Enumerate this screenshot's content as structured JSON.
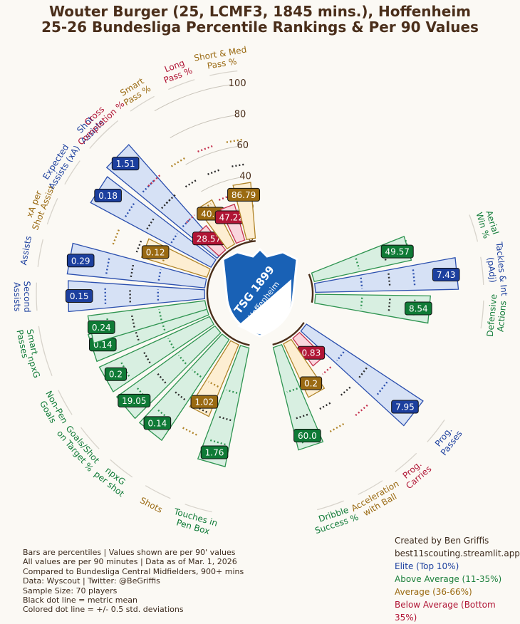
{
  "title_line1": "Wouter Burger (25, LCMF3, 1845 mins.), Hoffenheim",
  "title_line2": "25-26 Bundesliga Percentile Rankings & Per 90 Values",
  "logo": {
    "line1": "TSG 1899",
    "line2": "Hoffenheim",
    "primary": "#1961b5",
    "secondary": "#ffffff"
  },
  "colors": {
    "elite": {
      "fill": "#d6e1f5",
      "stroke": "#2b4fae",
      "label_bg": "#1c3f9e"
    },
    "above": {
      "fill": "#d8efe1",
      "stroke": "#2e9450",
      "label_bg": "#0f7a36"
    },
    "avg": {
      "fill": "#fdeed2",
      "stroke": "#b08428",
      "label_bg": "#9a6a12"
    },
    "below": {
      "fill": "#f9d6dd",
      "stroke": "#c4324e",
      "label_bg": "#b01535"
    }
  },
  "chart_data": {
    "type": "radial-bar",
    "radial_ticks": [
      0,
      20,
      40,
      60,
      80,
      100
    ],
    "rlim": [
      0,
      100
    ],
    "metrics": [
      {
        "label": "Aerial\nWin %",
        "value": "49.57",
        "percentile": 64,
        "tier": "above"
      },
      {
        "label": "Tackles & Int\n(pAdj)",
        "value": "7.43",
        "percentile": 92,
        "tier": "elite"
      },
      {
        "label": "Defensive\nActions",
        "value": "8.54",
        "percentile": 74,
        "tier": "above"
      },
      {
        "label": "Prog.\nPasses",
        "value": "7.95",
        "percentile": 90,
        "tier": "elite"
      },
      {
        "label": "Prog.\nCarries",
        "value": "0.83",
        "percentile": 22,
        "tier": "below"
      },
      {
        "label": "Acceleration\nwith Ball",
        "value": "0.2",
        "percentile": 38,
        "tier": "avg"
      },
      {
        "label": "Dribble\nSuccess %",
        "value": "60.0",
        "percentile": 68,
        "tier": "above"
      },
      {
        "label": "Touches in\nPen Box",
        "value": "1.76",
        "percentile": 78,
        "tier": "above"
      },
      {
        "label": "Shots",
        "value": "1.02",
        "percentile": 50,
        "tier": "avg"
      },
      {
        "label": "npxG\nper shot",
        "value": "0.14",
        "percentile": 78,
        "tier": "above"
      },
      {
        "label": "Goals/Shot\non Target %",
        "value": "19.05",
        "percentile": 78,
        "tier": "above"
      },
      {
        "label": "Non-Pen\nGoals",
        "value": "0.2",
        "percentile": 78,
        "tier": "above"
      },
      {
        "label": "npxG",
        "value": "0.14",
        "percentile": 78,
        "tier": "above"
      },
      {
        "label": "Smart\nPasses",
        "value": "0.24",
        "percentile": 76,
        "tier": "above"
      },
      {
        "label": "Second\nAssists",
        "value": "0.15",
        "percentile": 88,
        "tier": "elite"
      },
      {
        "label": "Assists",
        "value": "0.29",
        "percentile": 89,
        "tier": "elite"
      },
      {
        "label": "xA per\nShot Assist",
        "value": "0.12",
        "percentile": 44,
        "tier": "avg"
      },
      {
        "label": "Expected\nAssists (xA)",
        "value": "0.18",
        "percentile": 88,
        "tier": "elite"
      },
      {
        "label": "Shot\nAssists",
        "value": "1.51",
        "percentile": 92,
        "tier": "elite"
      },
      {
        "label": "Cross\nCompletion %",
        "value": "28.57",
        "percentile": 20,
        "tier": "below"
      },
      {
        "label": "Smart\nPass %",
        "value": "40.0",
        "percentile": 32,
        "tier": "avg"
      },
      {
        "label": "Long\nPass %",
        "value": "47.22",
        "percentile": 24,
        "tier": "below"
      },
      {
        "label": "Short & Med\nPass %",
        "value": "86.79",
        "percentile": 36,
        "tier": "avg"
      }
    ],
    "legend": [
      "Elite (Top 10%)",
      "Above Average (11-35%)",
      "Average (36-66%)",
      "Below Average (Bottom 35%)"
    ]
  },
  "footer_lines": [
    "Bars are percentiles | Values shown are per 90' values",
    "All values are per 90 minutes | Data as of Mar. 1, 2026",
    "Compared to Bundesliga Central Midfielders, 900+ mins",
    "Data: Wyscout | Twitter: @BeGriffis",
    "Sample Size: 70 players",
    "Black dot line = metric mean",
    "Colored dot line = +/- 0.5 std. deviations"
  ],
  "credits": {
    "line1": "Created by Ben Griffis",
    "line2": "best11scouting.streamlit.app",
    "elite": "Elite (Top 10%)",
    "above": "Above Average (11-35%)",
    "avg": "Average (36-66%)",
    "below": "Below Average (Bottom 35%)"
  }
}
